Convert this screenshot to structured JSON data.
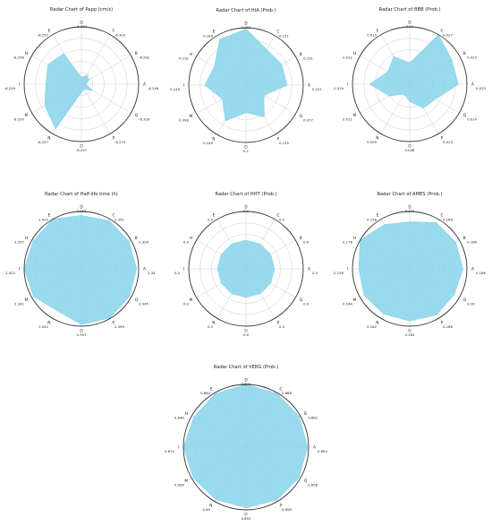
{
  "figure": {
    "fill_color": "#87d3ea",
    "grid_color": "#cccccc",
    "rim_color": "#333333"
  },
  "chart_data": [
    {
      "type": "radar",
      "title": "Radar Chart of Papp (cm/s)",
      "categories": [
        "D",
        "C",
        "B",
        "A",
        "Q",
        "P",
        "O",
        "N",
        "M",
        "I",
        "H",
        "E"
      ],
      "value_labels": [
        "-6.267",
        "-6.302",
        "-6.292",
        "-6.246",
        "-6.329",
        "-6.270",
        "-6.257",
        "-6.227",
        "-6.250",
        "-6.249",
        "-6.258",
        "-6.251"
      ],
      "radii": [
        0.12,
        0.18,
        0.16,
        0.08,
        0.22,
        0.1,
        0.14,
        0.9,
        0.74,
        0.62,
        0.68,
        0.62
      ]
    },
    {
      "type": "radar",
      "title": "Radar Chart of HIA (Prob.)",
      "categories": [
        "D",
        "C",
        "B",
        "A",
        "Q",
        "P",
        "O",
        "N",
        "M",
        "I",
        "H",
        "E"
      ],
      "value_labels": [
        "0.203",
        "0.151",
        "0.151",
        "0.151",
        "0.077",
        "0.135",
        "0.1",
        "0.149",
        "0.099",
        "0.149",
        "0.132",
        "0.189"
      ],
      "radii": [
        0.98,
        0.72,
        0.72,
        0.72,
        0.36,
        0.64,
        0.48,
        0.72,
        0.48,
        0.72,
        0.64,
        0.92
      ]
    },
    {
      "type": "radar",
      "title": "Radar Chart of BBB (Prob.)",
      "categories": [
        "D",
        "C",
        "B",
        "A",
        "Q",
        "P",
        "O",
        "N",
        "M",
        "I",
        "H",
        "E"
      ],
      "value_labels": [
        "0.01",
        "0.027",
        "0.023",
        "0.023",
        "0.014",
        "0.013",
        "0.008",
        "0.005",
        "0.011",
        "0.019",
        "0.012",
        "0.015"
      ],
      "radii": [
        0.37,
        1.0,
        0.85,
        0.85,
        0.52,
        0.48,
        0.3,
        0.2,
        0.41,
        0.7,
        0.44,
        0.56
      ]
    },
    {
      "type": "radar",
      "title": "Radar Chart of Half-life time (h)",
      "categories": [
        "D",
        "C",
        "B",
        "A",
        "Q",
        "P",
        "O",
        "N",
        "M",
        "I",
        "H",
        "E"
      ],
      "value_labels": [
        "2.253",
        "2.351",
        "2.328",
        "2.34",
        "2.345",
        "2.399",
        "2.357",
        "2.042",
        "2.342",
        "2.422",
        "2.357",
        "2.422"
      ],
      "radii": [
        0.93,
        0.97,
        0.96,
        0.965,
        0.968,
        0.99,
        0.973,
        0.843,
        0.967,
        1.0,
        0.973,
        1.0
      ]
    },
    {
      "type": "radar",
      "title": "Radar Chart of HHT (Prob.)",
      "categories": [
        "D",
        "C",
        "B",
        "A",
        "Q",
        "P",
        "O",
        "N",
        "M",
        "I",
        "H",
        "E"
      ],
      "value_labels": [
        "0.0",
        "0.0",
        "0.0",
        "0.0",
        "0.0",
        "0.0",
        "0.0",
        "0.0",
        "0.0",
        "0.0",
        "0.0",
        "0.0"
      ],
      "radii": [
        0.5,
        0.5,
        0.5,
        0.5,
        0.5,
        0.5,
        0.5,
        0.5,
        0.5,
        0.5,
        0.5,
        0.5
      ]
    },
    {
      "type": "radar",
      "title": "Radar Chart of AMES (Prob.)",
      "categories": [
        "D",
        "C",
        "B",
        "A",
        "Q",
        "P",
        "O",
        "N",
        "M",
        "I",
        "H",
        "E"
      ],
      "value_labels": [
        "0.134",
        "0.166",
        "0.166",
        "0.166",
        "0.16",
        "0.166",
        "0.162",
        "0.162",
        "0.164",
        "0.158",
        "0.178",
        "0.158"
      ],
      "radii": [
        0.82,
        0.93,
        0.93,
        0.93,
        0.9,
        0.93,
        0.91,
        0.91,
        0.92,
        0.89,
        1.0,
        0.89
      ]
    },
    {
      "type": "radar",
      "title": "Radar Chart of hERG (Prob.)",
      "categories": [
        "D",
        "C",
        "B",
        "A",
        "Q",
        "P",
        "O",
        "N",
        "M",
        "I",
        "H",
        "E"
      ],
      "value_labels": [
        "0.674",
        "0.666",
        "0.662",
        "0.664",
        "0.658",
        "0.658",
        "0.652",
        "0.65",
        "0.658",
        "0.674",
        "0.648",
        "0.664"
      ],
      "radii": [
        1.0,
        0.99,
        0.98,
        0.985,
        0.975,
        0.975,
        0.967,
        0.964,
        0.975,
        1.0,
        0.961,
        0.985
      ]
    }
  ]
}
